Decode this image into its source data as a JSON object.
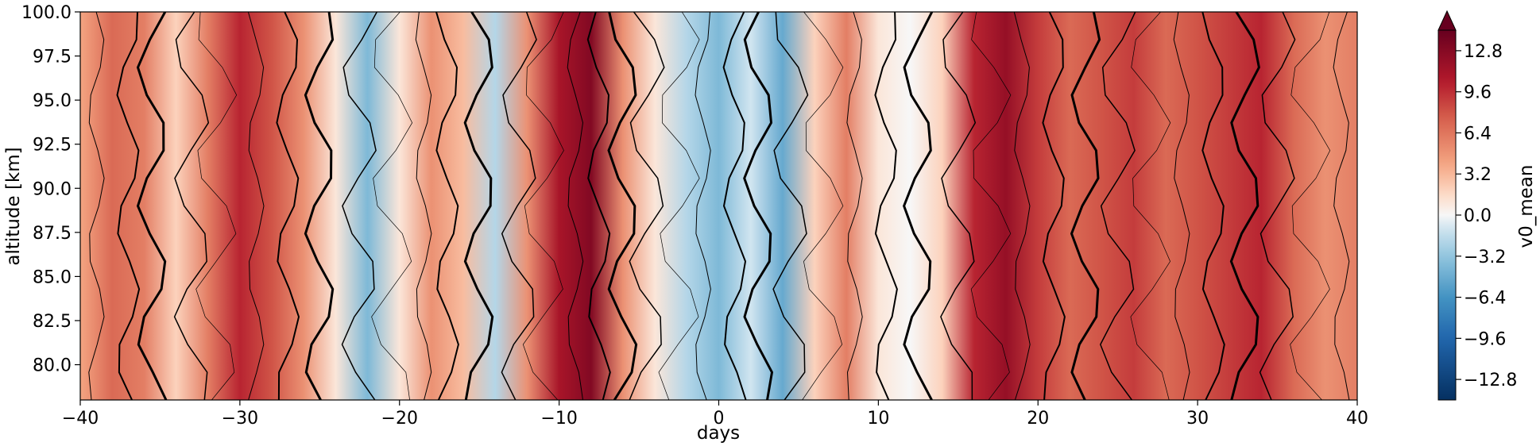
{
  "chart_data": {
    "type": "heatmap",
    "title": "",
    "xlabel": "days",
    "ylabel": "altitude [km]",
    "xlim": [
      -40,
      40
    ],
    "ylim": [
      78,
      100
    ],
    "x_ticks": [
      "−40",
      "−30",
      "−20",
      "−10",
      "0",
      "10",
      "20",
      "30",
      "40"
    ],
    "x_tick_values": [
      -40,
      -30,
      -20,
      -10,
      0,
      10,
      20,
      30,
      40
    ],
    "y_ticks": [
      "80.0",
      "82.5",
      "85.0",
      "87.5",
      "90.0",
      "92.5",
      "95.0",
      "97.5",
      "100.0"
    ],
    "y_tick_values": [
      80,
      82.5,
      85,
      87.5,
      90,
      92.5,
      95,
      97.5,
      100
    ],
    "colorbar": {
      "label": "v0_mean",
      "min": -14.4,
      "max": 14.4,
      "extend": "max",
      "colormap": "RdBu_r",
      "ticks": [
        "−12.8",
        "−9.6",
        "−6.4",
        "−3.2",
        "0.0",
        "3.2",
        "6.4",
        "9.6",
        "12.8"
      ],
      "tick_values": [
        -12.8,
        -9.6,
        -6.4,
        -3.2,
        0,
        3.2,
        6.4,
        9.6,
        12.8
      ]
    },
    "field_profile": {
      "days": [
        -40,
        -38,
        -36,
        -34,
        -32,
        -30,
        -28,
        -26,
        -24,
        -22,
        -20,
        -18,
        -16,
        -14,
        -12,
        -10,
        -8,
        -6,
        -4,
        -2,
        0,
        2,
        4,
        6,
        8,
        10,
        12,
        14,
        16,
        18,
        20,
        22,
        24,
        26,
        28,
        30,
        32,
        34,
        36,
        38,
        40
      ],
      "v0_mean": [
        4,
        7,
        6,
        2,
        6,
        10,
        8,
        5,
        1,
        -4,
        1,
        5,
        3,
        -2,
        5,
        11,
        13,
        5,
        1,
        -2,
        -4,
        -1,
        -5,
        2,
        6,
        1,
        0,
        2,
        10,
        12,
        9,
        7,
        8,
        9,
        7,
        8,
        9,
        10,
        7,
        5,
        6
      ]
    },
    "colors": {
      "strong_negative": "#053061",
      "negative": "#4393c3",
      "neutral": "#f7f7f7",
      "positive": "#f4a582",
      "strong_positive": "#b2182b",
      "extreme": "#67001f",
      "contour": "#000000"
    }
  }
}
